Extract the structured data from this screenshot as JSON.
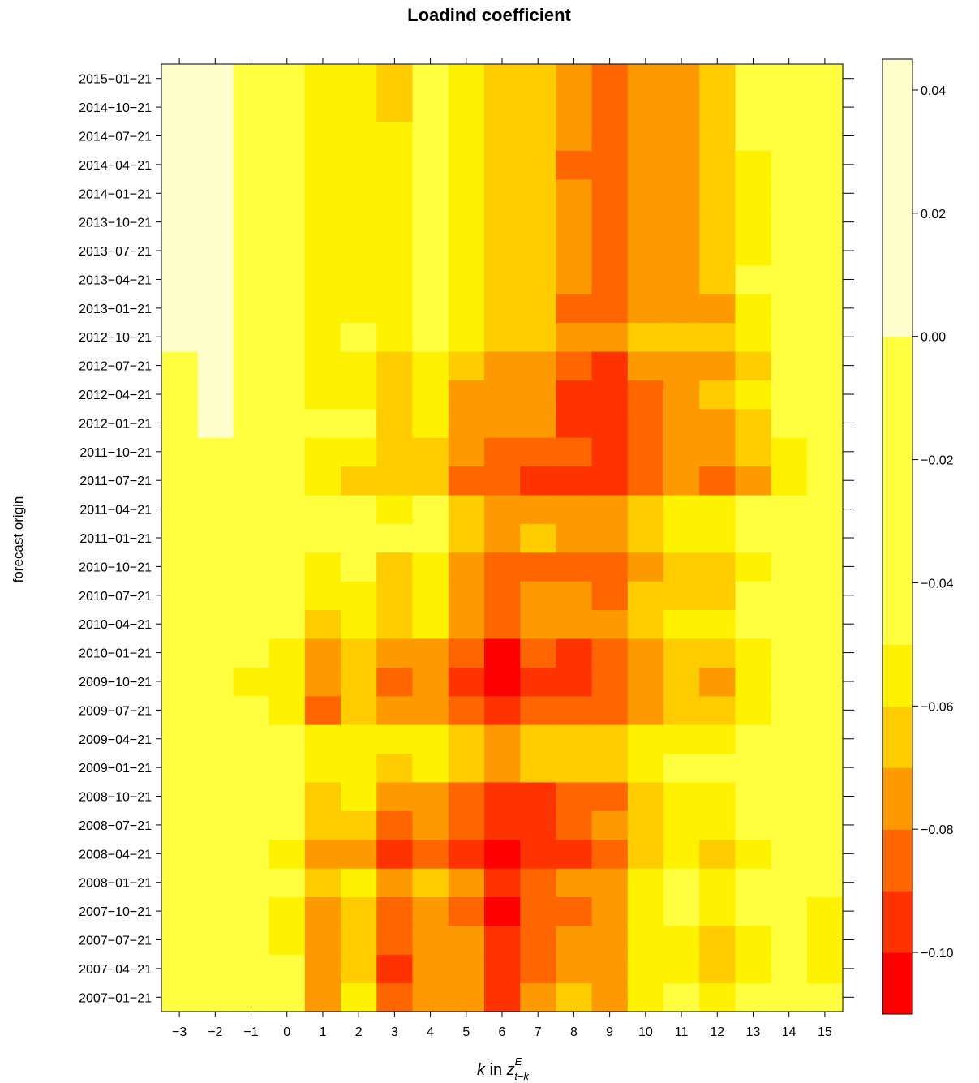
{
  "chart_data": {
    "type": "heatmap",
    "title": "Loadind coefficient",
    "xlabel": {
      "prefix": "k",
      "mid": " in ",
      "var": "z",
      "sup": "E",
      "sub": "t−k"
    },
    "ylabel": "forecast origin",
    "x": [
      -3,
      -2,
      -1,
      0,
      1,
      2,
      3,
      4,
      5,
      6,
      7,
      8,
      9,
      10,
      11,
      12,
      13,
      14,
      15
    ],
    "x_tick_labels": [
      "−3",
      "−2",
      "−1",
      "0",
      "1",
      "2",
      "3",
      "4",
      "5",
      "6",
      "7",
      "8",
      "9",
      "10",
      "11",
      "12",
      "13",
      "14",
      "15"
    ],
    "y": [
      "2007−01−21",
      "2007−04−21",
      "2007−07−21",
      "2007−10−21",
      "2008−01−21",
      "2008−04−21",
      "2008−07−21",
      "2008−10−21",
      "2009−01−21",
      "2009−04−21",
      "2009−07−21",
      "2009−10−21",
      "2010−01−21",
      "2010−04−21",
      "2010−07−21",
      "2010−10−21",
      "2011−01−21",
      "2011−04−21",
      "2011−07−21",
      "2011−10−21",
      "2012−01−21",
      "2012−04−21",
      "2012−07−21",
      "2012−10−21",
      "2013−01−21",
      "2013−04−21",
      "2013−07−21",
      "2013−10−21",
      "2014−01−21",
      "2014−04−21",
      "2014−07−21",
      "2014−10−21",
      "2015−01−21"
    ],
    "colorbar": {
      "breaks": [
        -0.11,
        -0.1,
        -0.09,
        -0.08,
        -0.07,
        -0.06,
        -0.05,
        0.0,
        0.045
      ],
      "colors": [
        "#FF0000",
        "#FF3300",
        "#FF6600",
        "#FF9900",
        "#FFCC00",
        "#FFF200",
        "#FFFF40",
        "#FFFFCC"
      ],
      "tick_values": [
        0.04,
        0.02,
        0.0,
        -0.02,
        -0.04,
        -0.06,
        -0.08,
        -0.1
      ],
      "tick_labels": [
        "0.04",
        "0.02",
        "0.00",
        "−0.02",
        "−0.04",
        "−0.06",
        "−0.08",
        "−0.10"
      ]
    },
    "values": [
      [
        -0.045,
        -0.045,
        -0.045,
        -0.045,
        -0.075,
        -0.055,
        -0.085,
        -0.075,
        -0.075,
        -0.095,
        -0.075,
        -0.065,
        -0.075,
        -0.055,
        -0.045,
        -0.055,
        -0.045,
        -0.045,
        -0.045
      ],
      [
        -0.045,
        -0.045,
        -0.045,
        -0.045,
        -0.075,
        -0.065,
        -0.095,
        -0.075,
        -0.075,
        -0.095,
        -0.085,
        -0.075,
        -0.075,
        -0.055,
        -0.055,
        -0.065,
        -0.055,
        -0.045,
        -0.055
      ],
      [
        -0.045,
        -0.045,
        -0.045,
        -0.055,
        -0.075,
        -0.065,
        -0.085,
        -0.075,
        -0.075,
        -0.095,
        -0.085,
        -0.075,
        -0.075,
        -0.055,
        -0.055,
        -0.065,
        -0.055,
        -0.045,
        -0.055
      ],
      [
        -0.045,
        -0.045,
        -0.045,
        -0.055,
        -0.075,
        -0.065,
        -0.085,
        -0.075,
        -0.085,
        -0.105,
        -0.085,
        -0.085,
        -0.075,
        -0.055,
        -0.045,
        -0.055,
        -0.045,
        -0.045,
        -0.055
      ],
      [
        -0.045,
        -0.045,
        -0.045,
        -0.045,
        -0.065,
        -0.055,
        -0.075,
        -0.065,
        -0.075,
        -0.095,
        -0.085,
        -0.075,
        -0.075,
        -0.055,
        -0.045,
        -0.055,
        -0.045,
        -0.045,
        -0.045
      ],
      [
        -0.045,
        -0.045,
        -0.045,
        -0.055,
        -0.075,
        -0.075,
        -0.095,
        -0.085,
        -0.095,
        -0.105,
        -0.095,
        -0.095,
        -0.085,
        -0.065,
        -0.055,
        -0.065,
        -0.055,
        -0.045,
        -0.045
      ],
      [
        -0.045,
        -0.045,
        -0.045,
        -0.045,
        -0.065,
        -0.065,
        -0.085,
        -0.075,
        -0.085,
        -0.095,
        -0.095,
        -0.085,
        -0.075,
        -0.065,
        -0.055,
        -0.055,
        -0.045,
        -0.045,
        -0.045
      ],
      [
        -0.045,
        -0.045,
        -0.045,
        -0.045,
        -0.065,
        -0.055,
        -0.075,
        -0.075,
        -0.085,
        -0.095,
        -0.095,
        -0.085,
        -0.085,
        -0.065,
        -0.055,
        -0.055,
        -0.045,
        -0.045,
        -0.045
      ],
      [
        -0.045,
        -0.045,
        -0.045,
        -0.045,
        -0.055,
        -0.055,
        -0.065,
        -0.055,
        -0.065,
        -0.075,
        -0.065,
        -0.065,
        -0.065,
        -0.055,
        -0.045,
        -0.045,
        -0.045,
        -0.045,
        -0.045
      ],
      [
        -0.045,
        -0.045,
        -0.045,
        -0.045,
        -0.055,
        -0.055,
        -0.055,
        -0.055,
        -0.065,
        -0.075,
        -0.065,
        -0.065,
        -0.065,
        -0.055,
        -0.055,
        -0.055,
        -0.045,
        -0.045,
        -0.045
      ],
      [
        -0.045,
        -0.045,
        -0.045,
        -0.055,
        -0.085,
        -0.065,
        -0.075,
        -0.075,
        -0.085,
        -0.095,
        -0.085,
        -0.085,
        -0.085,
        -0.075,
        -0.065,
        -0.065,
        -0.055,
        -0.045,
        -0.045
      ],
      [
        -0.045,
        -0.045,
        -0.055,
        -0.055,
        -0.075,
        -0.065,
        -0.085,
        -0.075,
        -0.095,
        -0.105,
        -0.095,
        -0.095,
        -0.085,
        -0.075,
        -0.065,
        -0.075,
        -0.055,
        -0.045,
        -0.045
      ],
      [
        -0.045,
        -0.045,
        -0.045,
        -0.055,
        -0.075,
        -0.065,
        -0.075,
        -0.075,
        -0.085,
        -0.105,
        -0.085,
        -0.095,
        -0.085,
        -0.075,
        -0.065,
        -0.065,
        -0.055,
        -0.045,
        -0.045
      ],
      [
        -0.045,
        -0.045,
        -0.045,
        -0.045,
        -0.065,
        -0.055,
        -0.065,
        -0.055,
        -0.075,
        -0.085,
        -0.075,
        -0.075,
        -0.075,
        -0.065,
        -0.055,
        -0.055,
        -0.045,
        -0.045,
        -0.045
      ],
      [
        -0.045,
        -0.045,
        -0.045,
        -0.045,
        -0.055,
        -0.055,
        -0.065,
        -0.055,
        -0.075,
        -0.085,
        -0.075,
        -0.075,
        -0.085,
        -0.065,
        -0.065,
        -0.065,
        -0.045,
        -0.045,
        -0.045
      ],
      [
        -0.045,
        -0.045,
        -0.045,
        -0.045,
        -0.055,
        -0.045,
        -0.065,
        -0.055,
        -0.075,
        -0.085,
        -0.085,
        -0.085,
        -0.085,
        -0.075,
        -0.065,
        -0.065,
        -0.055,
        -0.045,
        -0.045
      ],
      [
        -0.045,
        -0.045,
        -0.045,
        -0.045,
        -0.045,
        -0.045,
        -0.045,
        -0.045,
        -0.065,
        -0.075,
        -0.065,
        -0.075,
        -0.075,
        -0.065,
        -0.055,
        -0.055,
        -0.045,
        -0.045,
        -0.045
      ],
      [
        -0.045,
        -0.045,
        -0.045,
        -0.045,
        -0.045,
        -0.045,
        -0.055,
        -0.045,
        -0.065,
        -0.075,
        -0.075,
        -0.075,
        -0.075,
        -0.065,
        -0.055,
        -0.055,
        -0.045,
        -0.045,
        -0.045
      ],
      [
        -0.045,
        -0.045,
        -0.045,
        -0.045,
        -0.055,
        -0.065,
        -0.065,
        -0.065,
        -0.085,
        -0.085,
        -0.095,
        -0.095,
        -0.095,
        -0.085,
        -0.075,
        -0.085,
        -0.075,
        -0.055,
        -0.045
      ],
      [
        -0.045,
        -0.045,
        -0.045,
        -0.045,
        -0.055,
        -0.055,
        -0.065,
        -0.065,
        -0.075,
        -0.085,
        -0.085,
        -0.085,
        -0.095,
        -0.085,
        -0.075,
        -0.075,
        -0.065,
        -0.055,
        -0.045
      ],
      [
        -0.045,
        0.005,
        -0.045,
        -0.045,
        -0.045,
        -0.045,
        -0.065,
        -0.055,
        -0.075,
        -0.075,
        -0.075,
        -0.095,
        -0.095,
        -0.085,
        -0.075,
        -0.075,
        -0.065,
        -0.045,
        -0.045
      ],
      [
        -0.045,
        0.005,
        -0.045,
        -0.045,
        -0.055,
        -0.055,
        -0.065,
        -0.055,
        -0.075,
        -0.075,
        -0.075,
        -0.095,
        -0.095,
        -0.085,
        -0.075,
        -0.065,
        -0.055,
        -0.045,
        -0.045
      ],
      [
        -0.045,
        0.005,
        -0.045,
        -0.045,
        -0.055,
        -0.055,
        -0.065,
        -0.055,
        -0.065,
        -0.075,
        -0.075,
        -0.085,
        -0.095,
        -0.075,
        -0.075,
        -0.075,
        -0.065,
        -0.045,
        -0.045
      ],
      [
        0.005,
        0.005,
        -0.045,
        -0.045,
        -0.055,
        -0.045,
        -0.055,
        -0.045,
        -0.055,
        -0.065,
        -0.065,
        -0.075,
        -0.075,
        -0.065,
        -0.065,
        -0.065,
        -0.055,
        -0.045,
        -0.045
      ],
      [
        0.005,
        0.005,
        -0.045,
        -0.045,
        -0.055,
        -0.055,
        -0.055,
        -0.045,
        -0.055,
        -0.065,
        -0.065,
        -0.085,
        -0.085,
        -0.075,
        -0.075,
        -0.075,
        -0.055,
        -0.045,
        -0.045
      ],
      [
        0.005,
        0.005,
        -0.045,
        -0.045,
        -0.055,
        -0.055,
        -0.055,
        -0.045,
        -0.055,
        -0.065,
        -0.065,
        -0.075,
        -0.085,
        -0.075,
        -0.075,
        -0.065,
        -0.045,
        -0.045,
        -0.045
      ],
      [
        0.005,
        0.005,
        -0.045,
        -0.045,
        -0.055,
        -0.055,
        -0.055,
        -0.045,
        -0.055,
        -0.065,
        -0.065,
        -0.075,
        -0.085,
        -0.075,
        -0.075,
        -0.065,
        -0.055,
        -0.045,
        -0.045
      ],
      [
        0.005,
        0.005,
        -0.045,
        -0.045,
        -0.055,
        -0.055,
        -0.055,
        -0.045,
        -0.055,
        -0.065,
        -0.065,
        -0.075,
        -0.085,
        -0.075,
        -0.075,
        -0.065,
        -0.055,
        -0.045,
        -0.045
      ],
      [
        0.005,
        0.005,
        -0.045,
        -0.045,
        -0.055,
        -0.055,
        -0.055,
        -0.045,
        -0.055,
        -0.065,
        -0.065,
        -0.075,
        -0.085,
        -0.075,
        -0.075,
        -0.065,
        -0.055,
        -0.045,
        -0.045
      ],
      [
        0.005,
        0.005,
        -0.045,
        -0.045,
        -0.055,
        -0.055,
        -0.055,
        -0.045,
        -0.055,
        -0.065,
        -0.065,
        -0.085,
        -0.085,
        -0.075,
        -0.075,
        -0.065,
        -0.055,
        -0.045,
        -0.045
      ],
      [
        0.005,
        0.005,
        -0.045,
        -0.045,
        -0.055,
        -0.055,
        -0.055,
        -0.045,
        -0.055,
        -0.065,
        -0.065,
        -0.075,
        -0.085,
        -0.075,
        -0.075,
        -0.065,
        -0.045,
        -0.045,
        -0.045
      ],
      [
        0.005,
        0.005,
        -0.045,
        -0.045,
        -0.055,
        -0.055,
        -0.065,
        -0.045,
        -0.055,
        -0.065,
        -0.065,
        -0.075,
        -0.085,
        -0.075,
        -0.075,
        -0.065,
        -0.045,
        -0.045,
        -0.045
      ],
      [
        0.005,
        0.005,
        -0.045,
        -0.045,
        -0.055,
        -0.055,
        -0.065,
        -0.045,
        -0.055,
        -0.065,
        -0.065,
        -0.075,
        -0.085,
        -0.075,
        -0.075,
        -0.065,
        -0.045,
        -0.045,
        -0.045
      ]
    ]
  }
}
